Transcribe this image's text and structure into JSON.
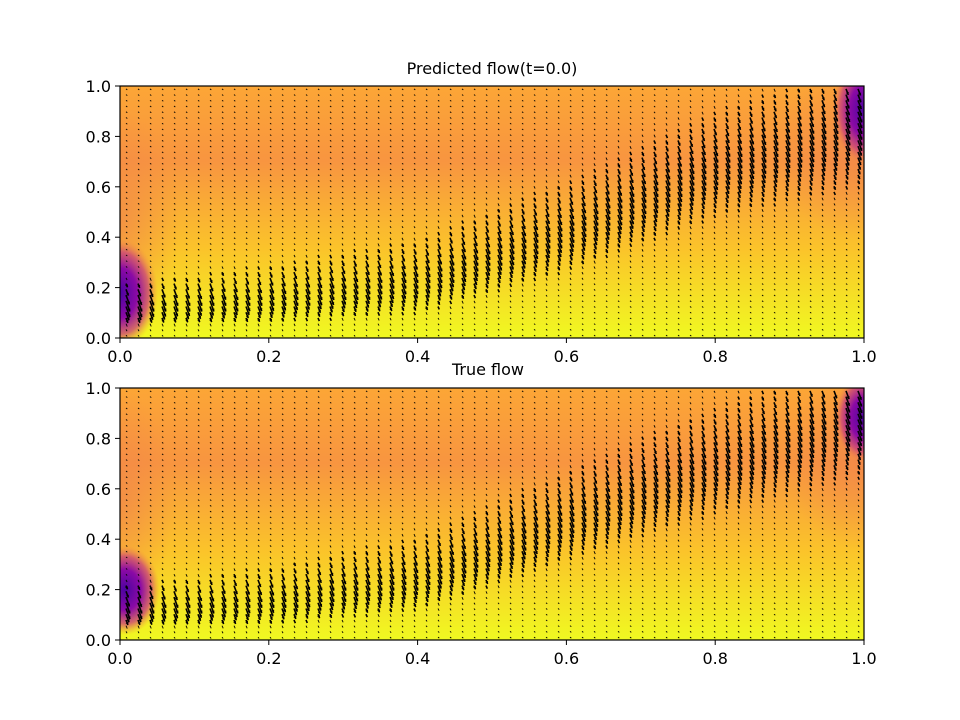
{
  "chart_data": [
    {
      "type": "heatmap",
      "subtype": "quiver-field",
      "title": "Predicted flow(t=0.0)",
      "xlabel": "",
      "ylabel": "",
      "xlim": [
        0.0,
        1.0
      ],
      "ylim": [
        0.0,
        1.0
      ],
      "xticks": [
        "0.0",
        "0.2",
        "0.4",
        "0.6",
        "0.8",
        "1.0"
      ],
      "yticks": [
        "0.0",
        "0.2",
        "0.4",
        "0.6",
        "0.8",
        "1.0"
      ],
      "colormap": "plasma",
      "jet_peak": [
        [
          0.0,
          0.14
        ],
        [
          0.2,
          0.18
        ],
        [
          0.4,
          0.25
        ],
        [
          0.6,
          0.45
        ],
        [
          0.8,
          0.7
        ],
        [
          1.0,
          0.85
        ]
      ],
      "dark_spots": [
        [
          0.0,
          0.18
        ],
        [
          1.0,
          0.88
        ]
      ],
      "arrow_color": "#000000"
    },
    {
      "type": "heatmap",
      "subtype": "quiver-field",
      "title": "True flow",
      "xlabel": "",
      "ylabel": "",
      "xlim": [
        0.0,
        1.0
      ],
      "ylim": [
        0.0,
        1.0
      ],
      "xticks": [
        "0.0",
        "0.2",
        "0.4",
        "0.6",
        "0.8",
        "1.0"
      ],
      "yticks": [
        "0.0",
        "0.2",
        "0.4",
        "0.6",
        "0.8",
        "1.0"
      ],
      "colormap": "plasma",
      "jet_peak": [
        [
          0.0,
          0.14
        ],
        [
          0.2,
          0.18
        ],
        [
          0.4,
          0.27
        ],
        [
          0.6,
          0.5
        ],
        [
          0.8,
          0.72
        ],
        [
          1.0,
          0.9
        ]
      ],
      "dark_spots": [
        [
          0.02,
          0.2
        ],
        [
          1.0,
          0.88
        ]
      ],
      "arrow_color": "#000000"
    }
  ]
}
